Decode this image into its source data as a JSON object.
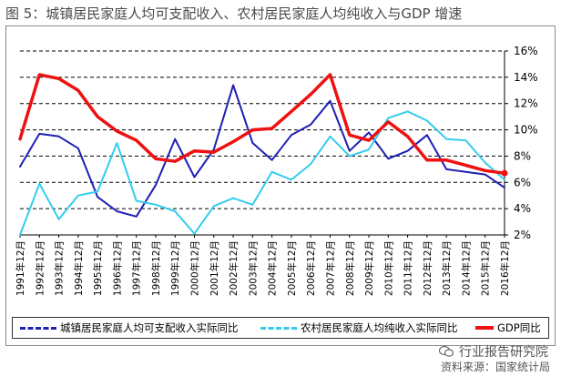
{
  "title": "图 5：城镇居民家庭人均可支配收入、农村居民家庭人均纯收入与GDP 增速",
  "watermark": "行业报告研究院",
  "source": "资料来源：国家统计局",
  "chart_data": {
    "type": "line",
    "categories": [
      "1991年12月",
      "1992年12月",
      "1993年12月",
      "1994年12月",
      "1995年12月",
      "1996年12月",
      "1997年12月",
      "1998年12月",
      "1999年12月",
      "2000年12月",
      "2001年12月",
      "2002年12月",
      "2003年12月",
      "2004年12月",
      "2005年12月",
      "2006年12月",
      "2007年12月",
      "2008年12月",
      "2009年12月",
      "2010年12月",
      "2011年12月",
      "2012年12月",
      "2013年12月",
      "2014年12月",
      "2015年12月",
      "2016年12月"
    ],
    "y_ticks": [
      "2%",
      "4%",
      "6%",
      "8%",
      "10%",
      "12%",
      "14%",
      "16%"
    ],
    "ylim": [
      2,
      16
    ],
    "grid": true,
    "legend_position": "bottom",
    "series": [
      {
        "name": "城镇居民家庭人均可支配收入实际同比",
        "color": "#1f1fb4",
        "width": 2,
        "dash": "",
        "values": [
          7.2,
          9.7,
          9.5,
          8.6,
          4.9,
          3.8,
          3.4,
          5.8,
          9.3,
          6.4,
          8.5,
          13.4,
          9.0,
          7.7,
          9.6,
          10.4,
          12.2,
          8.4,
          9.8,
          7.8,
          8.4,
          9.6,
          7.0,
          6.8,
          6.6,
          5.6
        ]
      },
      {
        "name": "农村居民家庭人均纯收入实际同比",
        "color": "#33ccee",
        "width": 2,
        "dash": "",
        "values": [
          2.0,
          5.9,
          3.2,
          5.0,
          5.3,
          9.0,
          4.6,
          4.3,
          3.8,
          2.1,
          4.2,
          4.8,
          4.3,
          6.8,
          6.2,
          7.4,
          9.5,
          8.0,
          8.5,
          10.9,
          11.4,
          10.7,
          9.3,
          9.2,
          7.5,
          6.2
        ]
      },
      {
        "name": "GDP同比",
        "color": "#ee1111",
        "width": 3.5,
        "dash": "",
        "values": [
          9.3,
          14.2,
          13.9,
          13.0,
          11.0,
          9.9,
          9.2,
          7.8,
          7.6,
          8.4,
          8.3,
          9.1,
          10.0,
          10.1,
          11.4,
          12.7,
          14.2,
          9.6,
          9.2,
          10.6,
          9.5,
          7.7,
          7.7,
          7.3,
          6.9,
          6.7
        ]
      }
    ]
  }
}
